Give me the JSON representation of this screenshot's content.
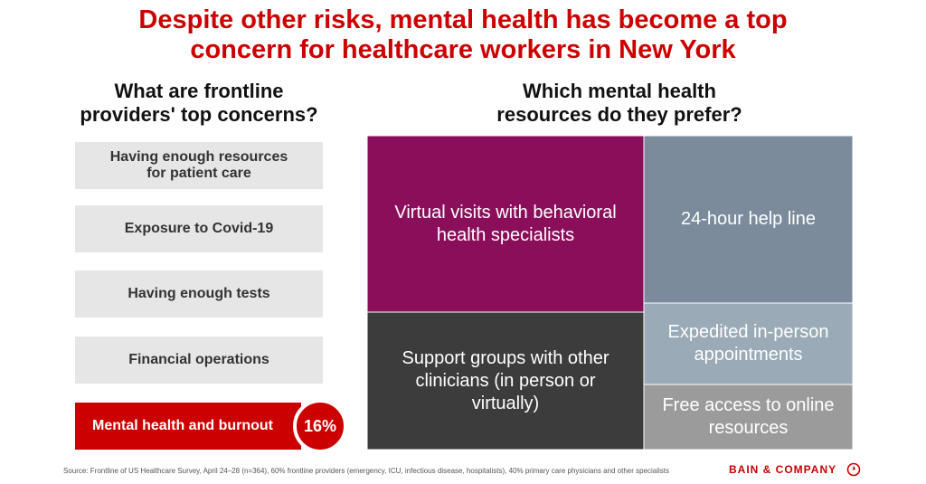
{
  "title": {
    "line1": "Despite other risks, mental health has become a top",
    "line2": "concern for healthcare workers in New York"
  },
  "left_heading": {
    "line1": "What are frontline",
    "line2": "providers' top concerns?"
  },
  "right_heading": {
    "line1": "Which mental health",
    "line2": "resources do they prefer?"
  },
  "concerns": [
    {
      "line1": "Having enough resources",
      "line2": "for patient care"
    },
    {
      "line1": "Exposure to Covid-19",
      "line2": ""
    },
    {
      "line1": "Having enough tests",
      "line2": ""
    },
    {
      "line1": "Financial operations",
      "line2": ""
    },
    {
      "line1": "Mental health and burnout",
      "line2": "",
      "value": "16%"
    }
  ],
  "chart_data": {
    "type": "treemap",
    "tiles": [
      {
        "lines": [
          "Virtual visits with behavioral",
          "health specialists"
        ],
        "color": "#8b0e5a"
      },
      {
        "lines": [
          "24-hour help line"
        ],
        "color": "#7b8b9c"
      },
      {
        "lines": [
          "Support groups with other",
          "clinicians (in person or",
          "virtually)"
        ],
        "color": "#3c3c3c"
      },
      {
        "lines": [
          "Expedited in-person",
          "appointments"
        ],
        "color": "#9aaab6"
      },
      {
        "lines": [
          "Free access to online",
          "resources"
        ],
        "color": "#9b9b9b"
      }
    ]
  },
  "footer": {
    "source": "Source: Frontline of US Healthcare Survey, April 24–28 (n=364), 60% frontline providers (emergency, ICU, infectious disease, hospitalists), 40% primary care physicians and other specialists",
    "brand": "BAIN & COMPANY",
    "brand_icon": "bain-logo-icon"
  },
  "colors": {
    "accent": "#cc0000",
    "concern_box": "#e6e6e6"
  }
}
